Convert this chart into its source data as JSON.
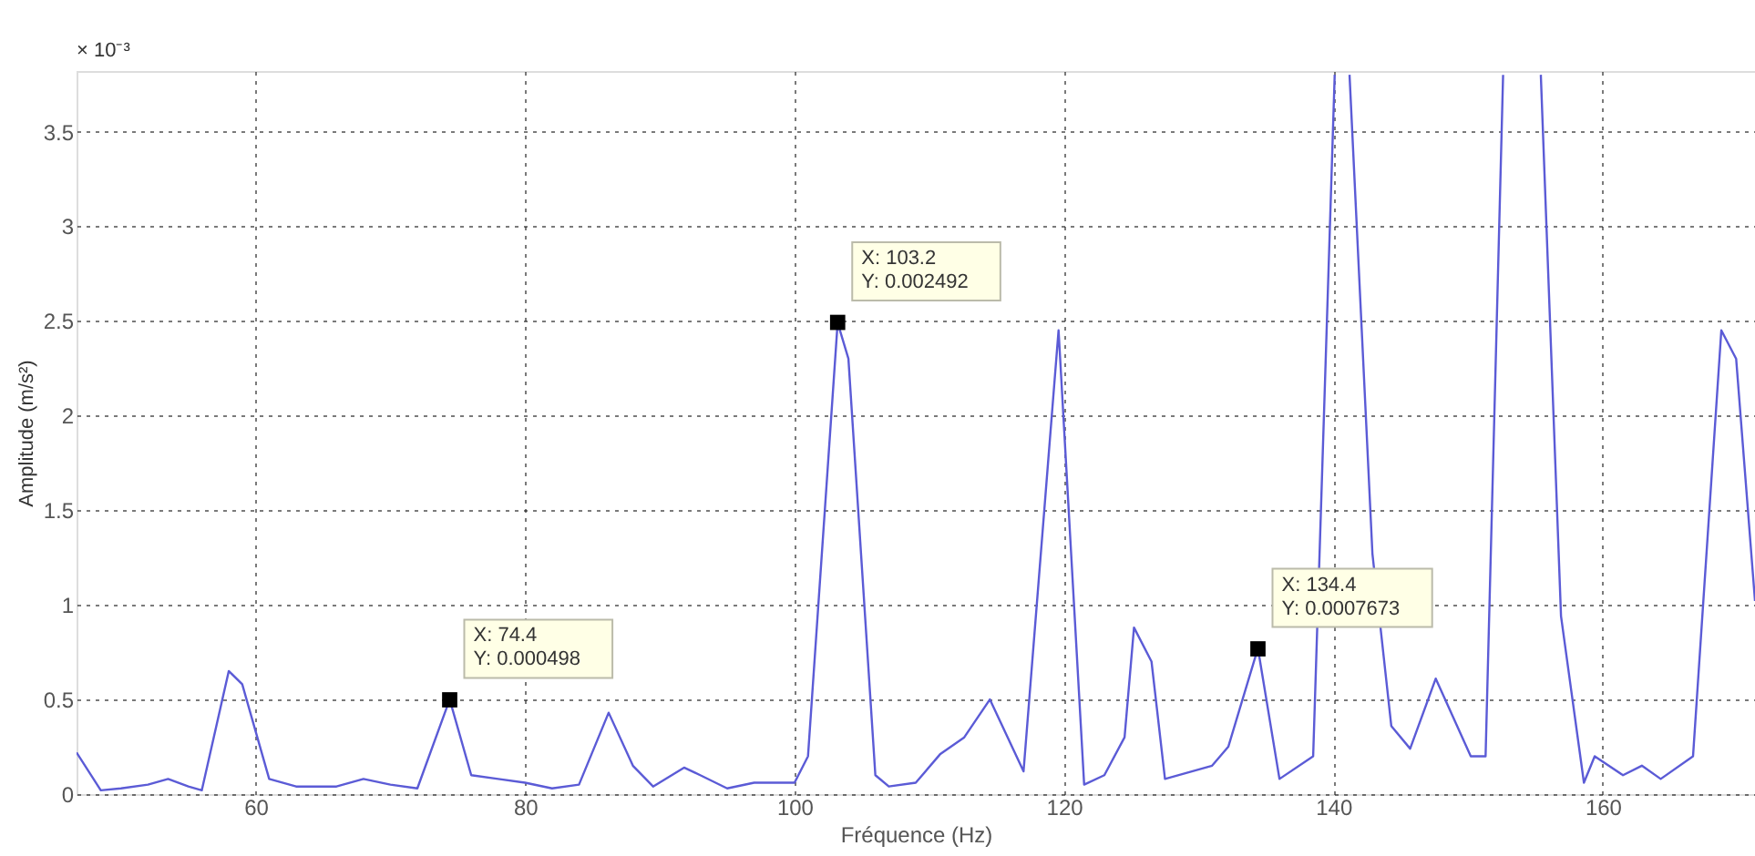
{
  "chart_data": {
    "type": "line",
    "xlabel": "Fréquence (Hz)",
    "ylabel": "Amplitude (m/s²)",
    "x": [
      46.7,
      48.5,
      50,
      52,
      53.5,
      55,
      56,
      58,
      59,
      61,
      63,
      66,
      68,
      70,
      72,
      74.4,
      76,
      78,
      80,
      82,
      84,
      86.2,
      88,
      89.5,
      91.8,
      93,
      95,
      97,
      100,
      101,
      103.2,
      104,
      106,
      107,
      109,
      110.8,
      112.6,
      114.5,
      117,
      119.6,
      121.5,
      123,
      124.5,
      125.2,
      126.5,
      127.5,
      131,
      132.2,
      134.4,
      136,
      138.5,
      140.1,
      140.6,
      141.2,
      142.9,
      144.3,
      145.7,
      147.6,
      150.2,
      151.3,
      152.6,
      154,
      155.4,
      156.9,
      158.6,
      159.4,
      161.5,
      162.9,
      164.3,
      166.7,
      168.8,
      169.9,
      171.3
    ],
    "series": [
      {
        "color": "#5b5bd6",
        "values": [
          0.22,
          0.02,
          0.03,
          0.05,
          0.08,
          0.04,
          0.02,
          0.65,
          0.58,
          0.08,
          0.04,
          0.04,
          0.08,
          0.05,
          0.03,
          0.5,
          0.1,
          0.08,
          0.06,
          0.03,
          0.05,
          0.43,
          0.15,
          0.04,
          0.14,
          0.1,
          0.03,
          0.06,
          0.06,
          0.2,
          2.49,
          2.3,
          0.1,
          0.04,
          0.06,
          0.21,
          0.3,
          0.5,
          0.12,
          2.45,
          0.05,
          0.1,
          0.3,
          0.88,
          0.7,
          0.08,
          0.15,
          0.25,
          0.77,
          0.08,
          0.2,
          3.8,
          null,
          3.8,
          1.27,
          0.36,
          0.24,
          0.61,
          0.2,
          0.2,
          3.8,
          null,
          3.8,
          0.94,
          0.06,
          0.2,
          0.1,
          0.15,
          0.08,
          0.2,
          2.45,
          2.3,
          1.02
        ]
      }
    ],
    "xlim": [
      46.7,
      171.3
    ],
    "ylim": [
      0,
      3.82
    ],
    "xticks": [
      60,
      80,
      100,
      120,
      140,
      160
    ],
    "yticks": [
      0,
      0.5,
      1,
      1.5,
      2,
      2.5,
      3,
      3.5
    ],
    "grid": true,
    "line_style": "solid",
    "marker": "none",
    "annotations": [
      "× 10⁻³",
      {
        "text": "X: 74.4\nY: 0.000498",
        "x": 74.4,
        "y": 0.498
      },
      {
        "text": "X: 103.2\nY: 0.002492",
        "x": 103.2,
        "y": 2.492
      },
      {
        "text": "X: 134.4\nY: 0.0007673",
        "x": 134.4,
        "y": 0.7673
      }
    ]
  }
}
